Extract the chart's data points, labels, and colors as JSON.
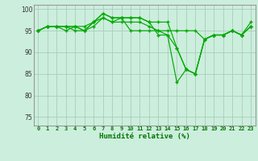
{
  "xlabel": "Humidité relative (%)",
  "bg_color": "#cceedd",
  "grid_color": "#aaccbb",
  "line_color": "#00aa00",
  "marker_color": "#00aa00",
  "ylim": [
    73,
    101
  ],
  "yticks": [
    75,
    80,
    85,
    90,
    95,
    100
  ],
  "xlim": [
    -0.5,
    23.5
  ],
  "xticks": [
    0,
    1,
    2,
    3,
    4,
    5,
    6,
    7,
    8,
    9,
    10,
    11,
    12,
    13,
    14,
    15,
    16,
    17,
    18,
    19,
    20,
    21,
    22,
    23
  ],
  "series": [
    [
      95,
      96,
      96,
      96,
      95,
      95,
      97,
      98,
      97,
      98,
      95,
      95,
      95,
      95,
      95,
      95,
      95,
      95,
      93,
      94,
      94,
      95,
      94,
      96
    ],
    [
      95,
      96,
      96,
      96,
      96,
      96,
      97,
      99,
      98,
      98,
      98,
      98,
      97,
      97,
      97,
      91,
      86,
      85,
      93,
      94,
      94,
      95,
      94,
      96
    ],
    [
      95,
      96,
      96,
      95,
      96,
      95,
      96,
      98,
      97,
      97,
      97,
      97,
      96,
      95,
      94,
      83,
      86,
      85,
      93,
      94,
      94,
      95,
      94,
      97
    ],
    [
      95,
      96,
      96,
      96,
      96,
      95,
      97,
      99,
      98,
      98,
      98,
      98,
      97,
      94,
      94,
      91,
      86,
      85,
      93,
      94,
      94,
      95,
      94,
      96
    ]
  ]
}
